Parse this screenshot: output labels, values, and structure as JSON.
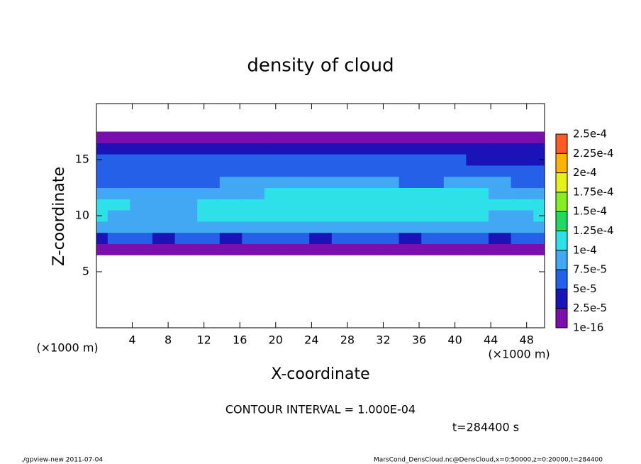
{
  "chart_data": {
    "type": "contour",
    "title": "density of cloud",
    "x_label": "X-coordinate",
    "y_label": "Z-coordinate",
    "x_unit": "(×1000 m)",
    "y_unit": "(×1000 m)",
    "xlim": [
      0,
      50
    ],
    "ylim": [
      0,
      20
    ],
    "xticks": [
      4,
      8,
      12,
      16,
      20,
      24,
      28,
      32,
      36,
      40,
      44,
      48
    ],
    "yticks": [
      5,
      10,
      15
    ],
    "x": [
      0,
      2.5,
      5,
      7.5,
      10,
      12.5,
      15,
      17.5,
      20,
      22.5,
      25,
      27.5,
      30,
      32.5,
      35,
      37.5,
      40,
      42.5,
      45,
      47.5,
      50
    ],
    "y": [
      7,
      8,
      9,
      10,
      11,
      12,
      13,
      14,
      15,
      16,
      17
    ],
    "z": [
      [
        1e-05,
        1e-05,
        1e-05,
        1e-05,
        1e-05,
        1e-05,
        1e-05,
        1e-05,
        1e-05,
        1e-05,
        1e-05,
        1e-05,
        1e-05,
        1e-05,
        1e-05,
        1e-05,
        1e-05,
        1e-05,
        1e-05,
        1e-05,
        1e-05
      ],
      [
        4.5e-05,
        5e-05,
        5e-05,
        4.5e-05,
        5e-05,
        5e-05,
        4.5e-05,
        5e-05,
        5e-05,
        5e-05,
        4.5e-05,
        5e-05,
        5e-05,
        5e-05,
        4.5e-05,
        5e-05,
        5e-05,
        5e-05,
        4.5e-05,
        5e-05,
        5e-05
      ],
      [
        8e-05,
        8e-05,
        8.5e-05,
        8e-05,
        8e-05,
        8.5e-05,
        8e-05,
        8e-05,
        8.5e-05,
        8.5e-05,
        8e-05,
        8e-05,
        8.5e-05,
        8e-05,
        8e-05,
        8.5e-05,
        8e-05,
        8e-05,
        8e-05,
        8e-05,
        8.5e-05
      ],
      [
        0.0001,
        9.5e-05,
        9e-05,
        9e-05,
        9.5e-05,
        0.0001,
        0.000105,
        0.000105,
        0.000108,
        0.00011,
        0.000112,
        0.000115,
        0.000112,
        0.00011,
        0.00011,
        0.000108,
        0.000105,
        0.0001,
        9.5e-05,
        9.5e-05,
        0.0001
      ],
      [
        0.000102,
        0.0001,
        9.5e-05,
        9.5e-05,
        9.5e-05,
        0.0001,
        0.000105,
        0.00011,
        0.000112,
        0.000115,
        0.000118,
        0.00012,
        0.000122,
        0.00012,
        0.000118,
        0.000115,
        0.000112,
        0.00011,
        0.000105,
        0.000102,
        0.0001
      ],
      [
        7.5e-05,
        7.5e-05,
        8e-05,
        8e-05,
        8e-05,
        8.5e-05,
        9e-05,
        9.5e-05,
        0.000102,
        0.000105,
        0.000105,
        0.000108,
        0.000105,
        0.000105,
        0.000102,
        0.000105,
        0.000108,
        0.000105,
        9.5e-05,
        9e-05,
        8.5e-05
      ],
      [
        6e-05,
        6e-05,
        6.5e-05,
        6.5e-05,
        7e-05,
        7e-05,
        7.5e-05,
        8e-05,
        8e-05,
        8.5e-05,
        8.5e-05,
        8e-05,
        8e-05,
        7.5e-05,
        7e-05,
        7e-05,
        8e-05,
        8e-05,
        7.5e-05,
        6.5e-05,
        6e-05
      ],
      [
        6.5e-05,
        6.5e-05,
        6.5e-05,
        6e-05,
        6.5e-05,
        6.5e-05,
        6.5e-05,
        6.5e-05,
        6e-05,
        6.5e-05,
        6.5e-05,
        6.5e-05,
        6.5e-05,
        6.5e-05,
        6e-05,
        6.5e-05,
        6.5e-05,
        6e-05,
        5.5e-05,
        5.5e-05,
        5.5e-05
      ],
      [
        6e-05,
        6e-05,
        6e-05,
        6e-05,
        5.5e-05,
        5.5e-05,
        5.5e-05,
        6e-05,
        6e-05,
        6e-05,
        6e-05,
        5.5e-05,
        5.5e-05,
        5.5e-05,
        5.5e-05,
        5.5e-05,
        5.5e-05,
        4.5e-05,
        4.5e-05,
        4.5e-05,
        4.5e-05
      ],
      [
        3e-05,
        3e-05,
        3e-05,
        3e-05,
        3e-05,
        3e-05,
        3e-05,
        3e-05,
        3e-05,
        3e-05,
        3e-05,
        3e-05,
        3e-05,
        3e-05,
        3e-05,
        3e-05,
        3e-05,
        3e-05,
        3e-05,
        3e-05,
        3e-05
      ],
      [
        1e-05,
        1e-05,
        1e-05,
        1e-05,
        1e-05,
        1e-05,
        1e-05,
        1e-05,
        1e-05,
        1e-05,
        1e-05,
        1e-05,
        1e-05,
        1e-05,
        1e-05,
        1e-05,
        1e-05,
        1e-05,
        1e-05,
        1e-05,
        1e-05
      ]
    ],
    "colorbar": {
      "levels": [
        {
          "value": 1e-16,
          "label": "1e-16"
        },
        {
          "value": 2.5e-05,
          "label": "2.5e-5"
        },
        {
          "value": 5e-05,
          "label": "5e-5"
        },
        {
          "value": 7.5e-05,
          "label": "7.5e-5"
        },
        {
          "value": 0.0001,
          "label": "1e-4"
        },
        {
          "value": 0.000125,
          "label": "1.25e-4"
        },
        {
          "value": 0.00015,
          "label": "1.5e-4"
        },
        {
          "value": 0.000175,
          "label": "1.75e-4"
        },
        {
          "value": 0.0002,
          "label": "2e-4"
        },
        {
          "value": 0.000225,
          "label": "2.25e-4"
        },
        {
          "value": 0.00025,
          "label": "2.5e-4"
        }
      ],
      "colors": [
        "#7b0fae",
        "#1a14b8",
        "#2460e8",
        "#42a8f4",
        "#2ee0e8",
        "#22d860",
        "#86ee24",
        "#e6f01c",
        "#ffb400",
        "#ff5a28"
      ]
    },
    "contour_note": "CONTOUR INTERVAL = 1.000E-04",
    "time_label": "t=284400 s",
    "footer_left": "./gpview-new  2011-07-04",
    "footer_right": "MarsCond_DensCloud.nc@DensCloud,x=0:50000,z=0:20000,t=284400"
  }
}
